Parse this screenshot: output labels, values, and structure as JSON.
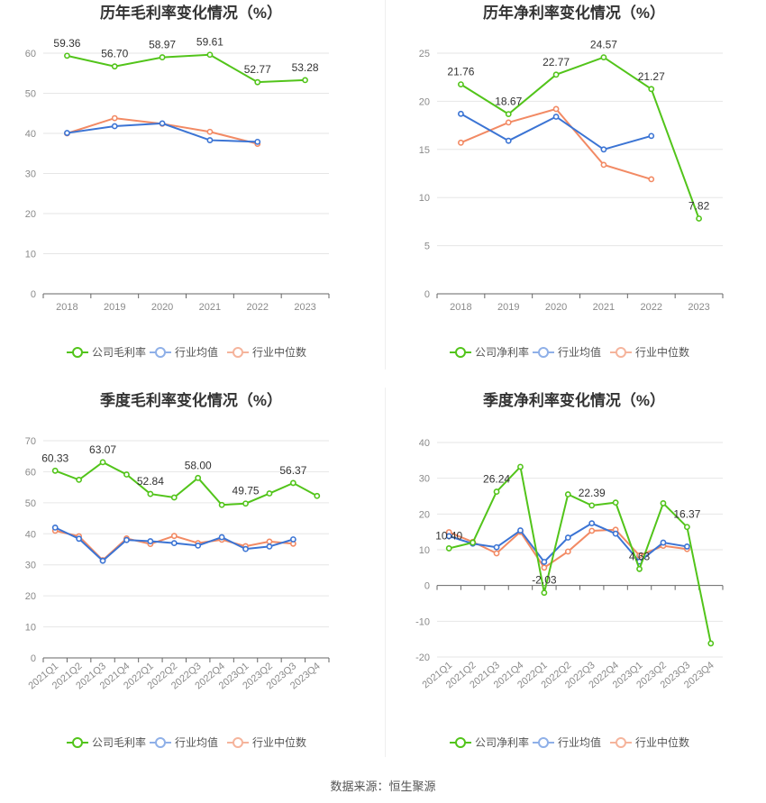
{
  "source": "数据来源：恒生聚源",
  "colors": {
    "company": "#52c41a",
    "avg": "#3b74d4",
    "median": "#f28a64",
    "grid": "#e6e6e6",
    "axis": "#666666"
  },
  "legend": {
    "company_gross": "公司毛利率",
    "company_net": "公司净利率",
    "avg": "行业均值",
    "median": "行业中位数"
  },
  "chart_data": [
    {
      "id": "annual-gross",
      "type": "line",
      "title": "历年毛利率变化情况（%）",
      "categories": [
        "2018",
        "2019",
        "2020",
        "2021",
        "2022",
        "2023"
      ],
      "ylim": [
        0,
        60
      ],
      "yticks": [
        0,
        10,
        20,
        30,
        40,
        50,
        60
      ],
      "series": [
        {
          "name": "公司毛利率",
          "key": "company",
          "values": [
            59.36,
            56.7,
            58.97,
            59.61,
            52.77,
            53.28
          ],
          "labels": [
            "59.36",
            "56.70",
            "58.97",
            "59.61",
            "52.77",
            "53.28"
          ]
        },
        {
          "name": "行业均值",
          "key": "avg",
          "values": [
            40.1,
            41.8,
            42.5,
            38.3,
            37.9,
            null
          ]
        },
        {
          "name": "行业中位数",
          "key": "median",
          "values": [
            40.0,
            43.8,
            42.4,
            40.4,
            37.4,
            null
          ]
        }
      ]
    },
    {
      "id": "annual-net",
      "type": "line",
      "title": "历年净利率变化情况（%）",
      "categories": [
        "2018",
        "2019",
        "2020",
        "2021",
        "2022",
        "2023"
      ],
      "ylim": [
        0,
        25
      ],
      "yticks": [
        0,
        5,
        10,
        15,
        20,
        25
      ],
      "series": [
        {
          "name": "公司净利率",
          "key": "company",
          "values": [
            21.76,
            18.67,
            22.77,
            24.57,
            21.27,
            7.82
          ],
          "labels": [
            "21.76",
            "18.67",
            "22.77",
            "24.57",
            "21.27",
            "7.82"
          ]
        },
        {
          "name": "行业均值",
          "key": "avg",
          "values": [
            18.7,
            15.9,
            18.4,
            15.0,
            16.4,
            null
          ]
        },
        {
          "name": "行业中位数",
          "key": "median",
          "values": [
            15.7,
            17.8,
            19.2,
            13.4,
            11.9,
            null
          ]
        }
      ]
    },
    {
      "id": "quarterly-gross",
      "type": "line",
      "title": "季度毛利率变化情况（%）",
      "categories": [
        "2021Q1",
        "2021Q2",
        "2021Q3",
        "2021Q4",
        "2022Q1",
        "2022Q2",
        "2022Q3",
        "2022Q4",
        "2023Q1",
        "2023Q2",
        "2023Q3",
        "2023Q4"
      ],
      "ylim": [
        0,
        70
      ],
      "yticks": [
        0,
        10,
        20,
        30,
        40,
        50,
        60,
        70
      ],
      "series": [
        {
          "name": "公司毛利率",
          "key": "company",
          "values": [
            60.33,
            57.4,
            63.07,
            59.1,
            52.84,
            51.7,
            58.0,
            49.3,
            49.75,
            53.0,
            56.37,
            52.2
          ],
          "labels": [
            "60.33",
            null,
            "63.07",
            null,
            "52.84",
            null,
            "58.00",
            null,
            "49.75",
            null,
            "56.37",
            null
          ]
        },
        {
          "name": "行业均值",
          "key": "avg",
          "values": [
            42.0,
            38.4,
            31.3,
            38.0,
            37.6,
            37.0,
            36.2,
            38.9,
            35.1,
            35.9,
            38.2,
            null
          ]
        },
        {
          "name": "行业中位数",
          "key": "median",
          "values": [
            41.0,
            39.2,
            31.5,
            38.5,
            36.7,
            39.3,
            37.0,
            38.1,
            36.0,
            37.5,
            36.8,
            null
          ]
        }
      ]
    },
    {
      "id": "quarterly-net",
      "type": "line",
      "title": "季度净利率变化情况（%）",
      "categories": [
        "2021Q1",
        "2021Q2",
        "2021Q3",
        "2021Q4",
        "2022Q1",
        "2022Q2",
        "2022Q3",
        "2022Q4",
        "2023Q1",
        "2023Q2",
        "2023Q3",
        "2023Q4"
      ],
      "ylim": [
        -20,
        40
      ],
      "yticks": [
        -20,
        -10,
        0,
        10,
        20,
        30,
        40
      ],
      "series": [
        {
          "name": "公司净利率",
          "key": "company",
          "values": [
            10.4,
            12.0,
            26.24,
            33.2,
            -2.03,
            25.5,
            22.39,
            23.2,
            4.63,
            23.0,
            16.37,
            -16.2
          ],
          "labels": [
            "10.40",
            null,
            "26.24",
            null,
            "-2.03",
            null,
            "22.39",
            null,
            "4.63",
            null,
            "16.37",
            null
          ]
        },
        {
          "name": "行业均值",
          "key": "avg",
          "values": [
            13.8,
            11.7,
            10.7,
            15.4,
            6.6,
            13.4,
            17.4,
            14.5,
            6.7,
            12.0,
            10.9,
            null
          ]
        },
        {
          "name": "行业中位数",
          "key": "median",
          "values": [
            14.9,
            12.2,
            9.0,
            15.0,
            5.0,
            9.5,
            15.3,
            15.6,
            8.4,
            11.1,
            10.2,
            null
          ]
        }
      ]
    }
  ]
}
